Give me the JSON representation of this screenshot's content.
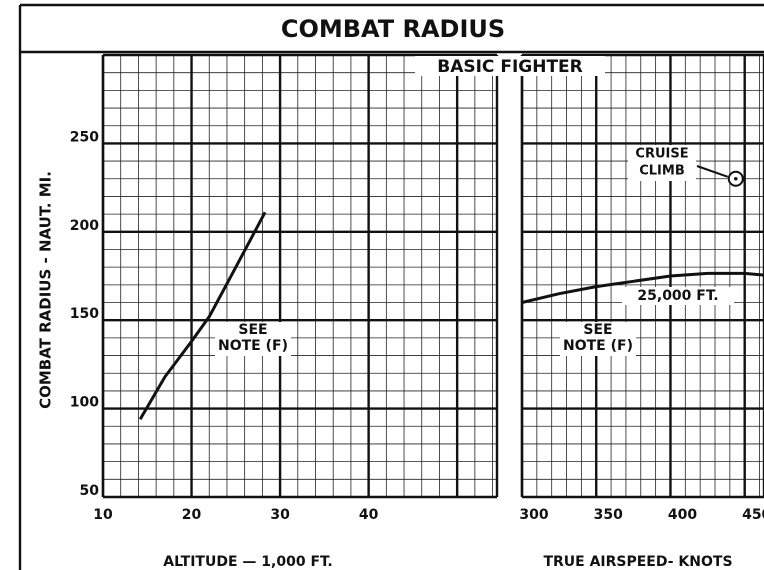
{
  "header": {
    "title": "COMBAT RADIUS",
    "subtitle": "BASIC FIGHTER"
  },
  "chart_data": [
    {
      "type": "line",
      "x_label": "ALTITUDE — 1,000 FT.",
      "y_label": "COMBAT RADIUS - NAUT. MI.",
      "xlim": [
        10,
        54.5
      ],
      "xticks": [
        10,
        20,
        30,
        40
      ],
      "ylim": [
        50,
        300
      ],
      "yticks": [
        50,
        100,
        150,
        200,
        250
      ],
      "series": [
        {
          "color": "#111111",
          "x": [
            14.2,
            17,
            20,
            22,
            25,
            28.3
          ],
          "values": [
            94,
            118,
            138,
            152,
            180,
            211
          ]
        }
      ],
      "annotation": [
        "SEE",
        "NOTE (F)"
      ]
    },
    {
      "type": "line",
      "x_label": "TRUE AIRSPEED- KNOTS",
      "xlim": [
        300,
        463
      ],
      "xticks": [
        300,
        350,
        400,
        450
      ],
      "ylim": [
        50,
        300
      ],
      "yticks": [
        50,
        100,
        150,
        200,
        250
      ],
      "series": [
        {
          "name": "25,000 FT.",
          "color": "#111111",
          "x": [
            300,
            325,
            350,
            375,
            400,
            425,
            450,
            463
          ],
          "values": [
            160,
            165,
            169,
            172,
            175,
            176.5,
            176.5,
            175.5
          ]
        }
      ],
      "point": {
        "label": [
          "CRUISE",
          "CLIMB"
        ],
        "x": 444,
        "y": 230
      },
      "annotation": [
        "SEE",
        "NOTE (F)"
      ]
    }
  ]
}
